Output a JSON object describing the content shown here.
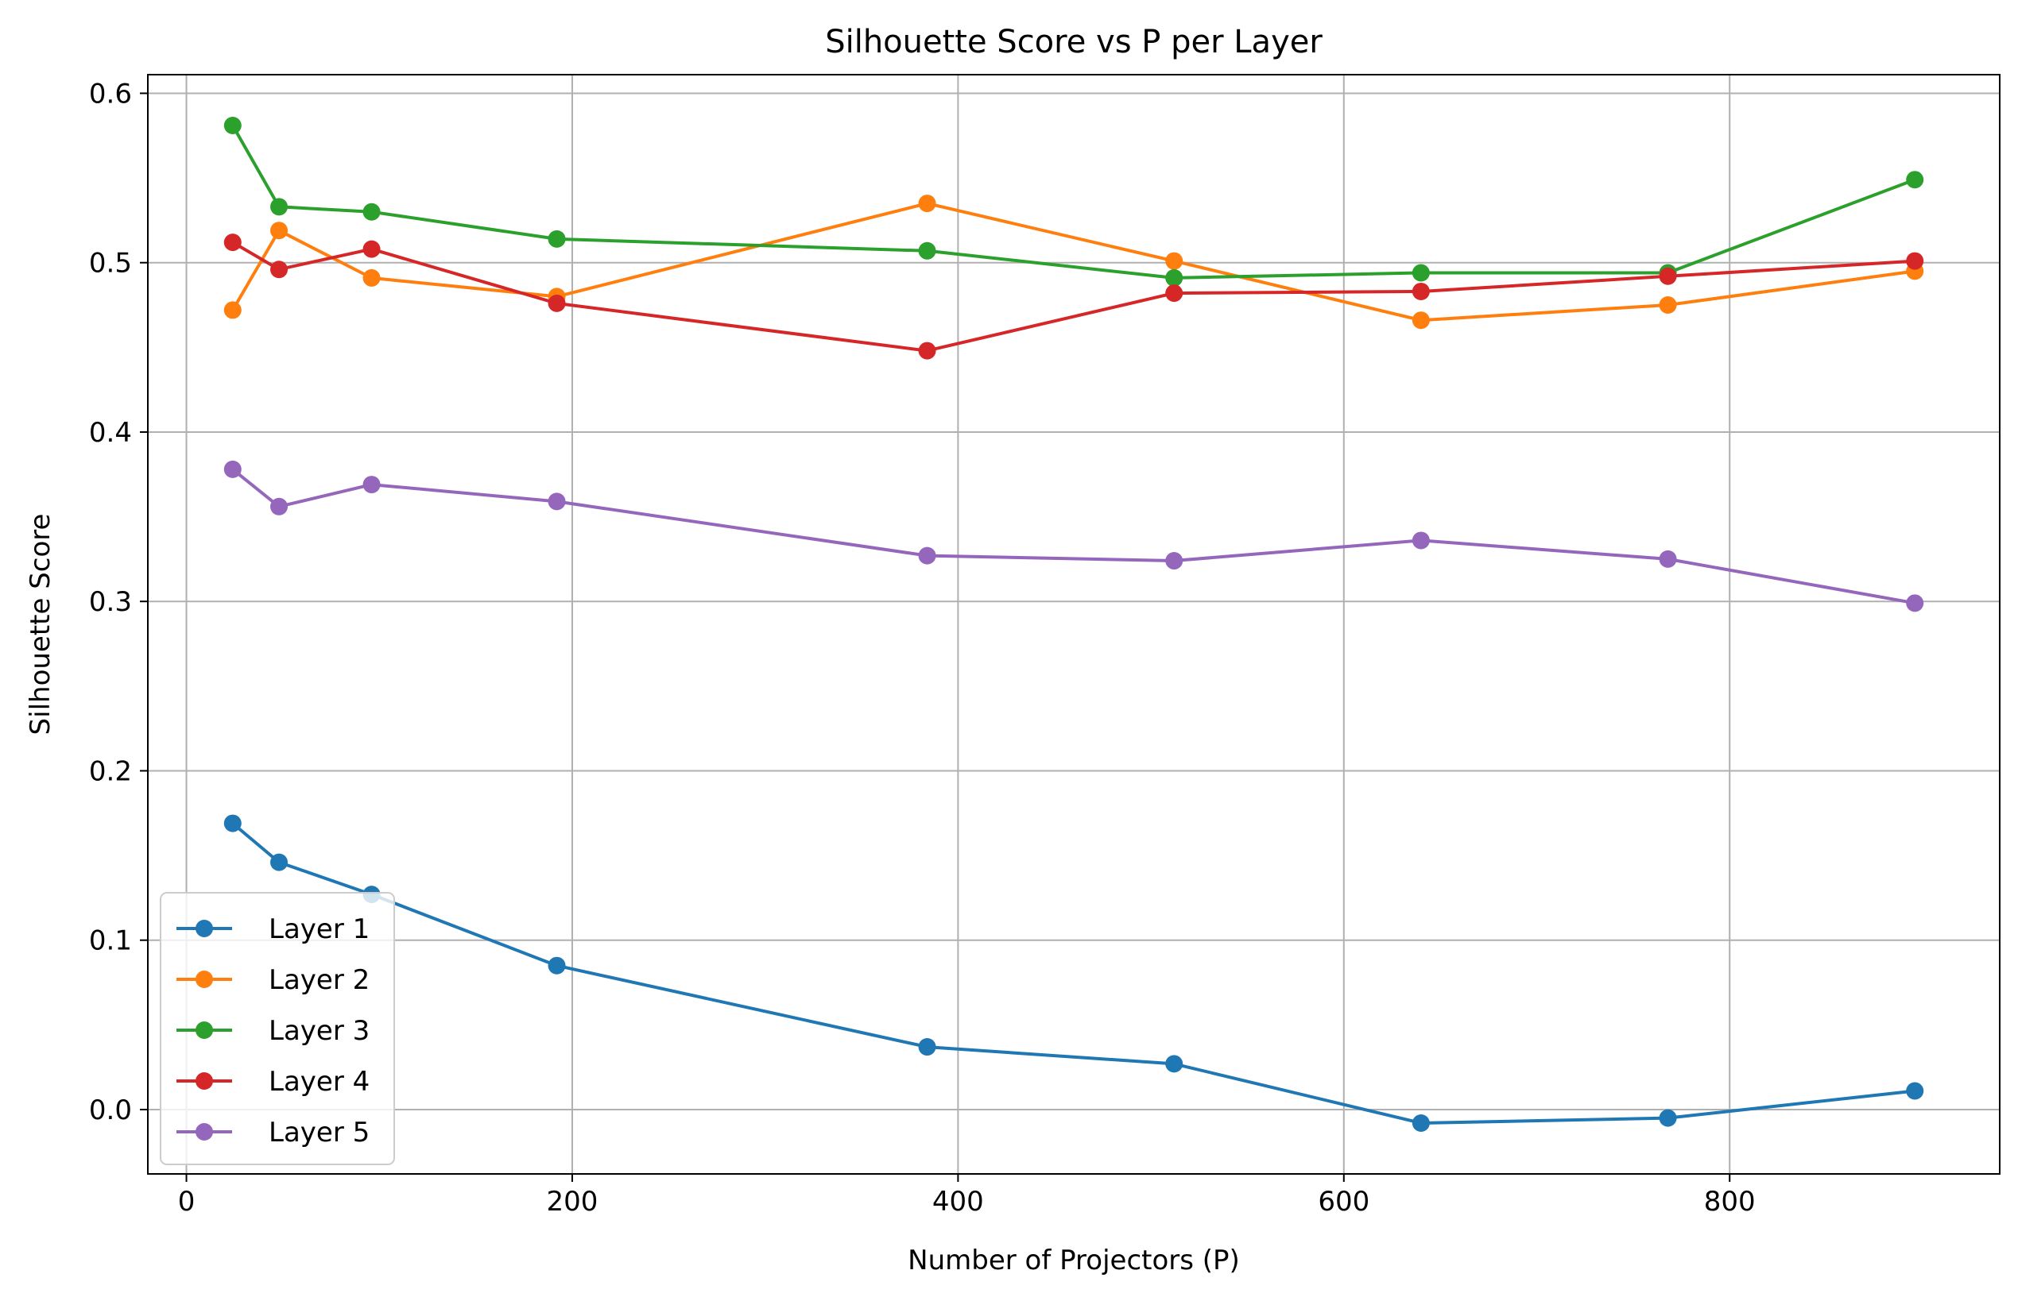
{
  "chart_data": {
    "type": "line",
    "title": "Silhouette Score vs P per Layer",
    "xlabel": "Number of Projectors (P)",
    "ylabel": "Silhouette Score",
    "xlim": [
      -20,
      940
    ],
    "ylim": [
      -0.038,
      0.611
    ],
    "xticks": [
      0,
      200,
      400,
      600,
      800
    ],
    "xtick_labels": [
      "0",
      "200",
      "400",
      "600",
      "800"
    ],
    "yticks": [
      0.0,
      0.1,
      0.2,
      0.3,
      0.4,
      0.5,
      0.6
    ],
    "ytick_labels": [
      "0.0",
      "0.1",
      "0.2",
      "0.3",
      "0.4",
      "0.5",
      "0.6"
    ],
    "grid": true,
    "legend_position": "lower-left",
    "x": [
      24,
      48,
      96,
      192,
      384,
      512,
      640,
      768,
      896
    ],
    "series": [
      {
        "name": "Layer 1",
        "color": "#1f77b4",
        "values": [
          0.169,
          0.146,
          0.127,
          0.085,
          0.037,
          0.027,
          -0.008,
          -0.005,
          0.011
        ]
      },
      {
        "name": "Layer 2",
        "color": "#ff7f0e",
        "values": [
          0.472,
          0.519,
          0.491,
          0.48,
          0.535,
          0.501,
          0.466,
          0.475,
          0.495
        ]
      },
      {
        "name": "Layer 3",
        "color": "#2ca02c",
        "values": [
          0.581,
          0.533,
          0.53,
          0.514,
          0.507,
          0.491,
          0.494,
          0.494,
          0.549
        ]
      },
      {
        "name": "Layer 4",
        "color": "#d62728",
        "values": [
          0.512,
          0.496,
          0.508,
          0.476,
          0.448,
          0.482,
          0.483,
          0.492,
          0.501
        ]
      },
      {
        "name": "Layer 5",
        "color": "#9467bd",
        "values": [
          0.378,
          0.356,
          0.369,
          0.359,
          0.327,
          0.324,
          0.336,
          0.325,
          0.299
        ]
      }
    ]
  }
}
